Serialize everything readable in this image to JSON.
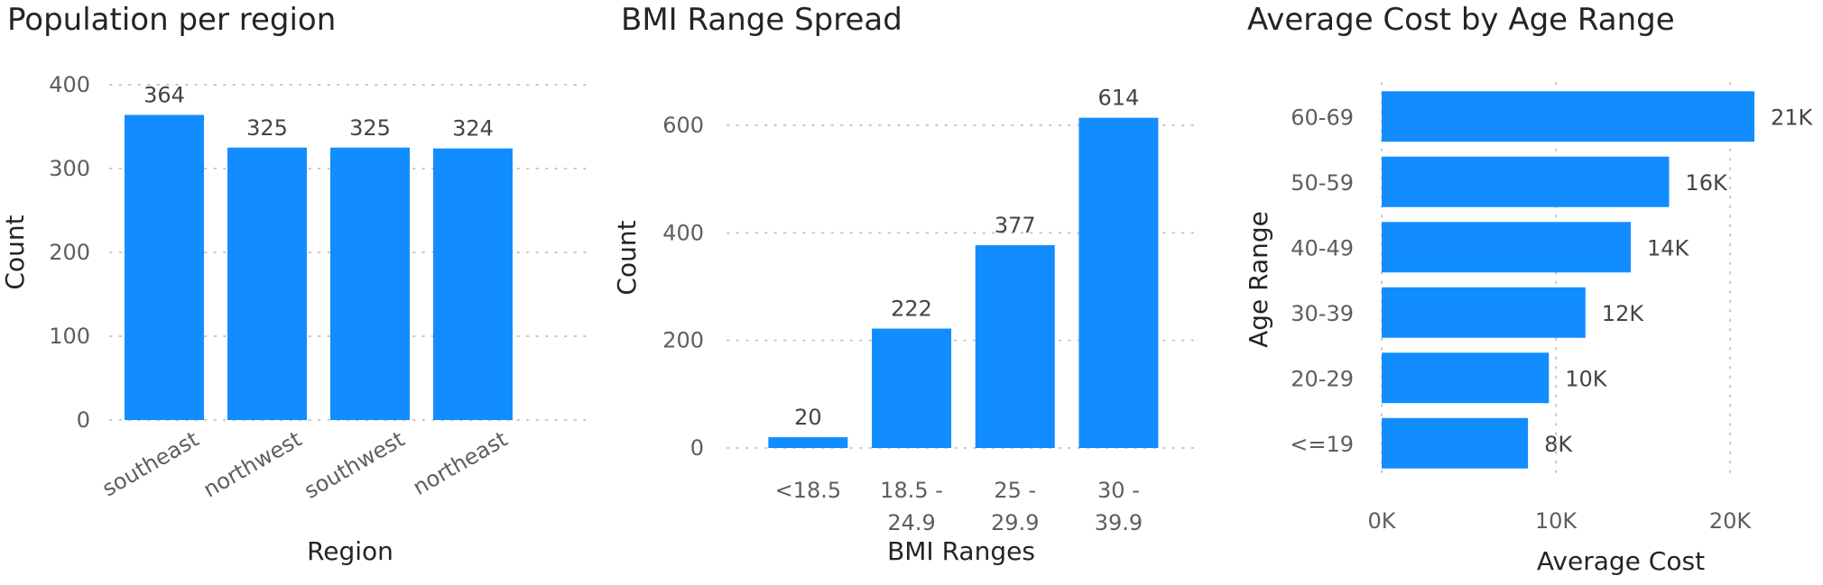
{
  "chart_data": [
    {
      "type": "bar",
      "title": "Population per region",
      "xlabel": "Region",
      "ylabel": "Count",
      "categories": [
        "southeast",
        "northwest",
        "southwest",
        "northeast"
      ],
      "values": [
        364,
        325,
        325,
        324
      ],
      "data_labels": [
        "364",
        "325",
        "325",
        "324"
      ],
      "yticks": [
        0,
        100,
        200,
        300,
        400
      ],
      "ylim": [
        0,
        400
      ],
      "grid": true,
      "color": "#118dff"
    },
    {
      "type": "bar",
      "title": "BMI Range Spread",
      "xlabel": "BMI Ranges",
      "ylabel": "Count",
      "categories": [
        "<18.5",
        "18.5 - 24.9",
        "25 - 29.9",
        "30 - 39.9"
      ],
      "category_lines": [
        [
          "<18.5"
        ],
        [
          "18.5 -",
          "24.9"
        ],
        [
          "25 -",
          "29.9"
        ],
        [
          "30 -",
          "39.9"
        ]
      ],
      "values": [
        20,
        222,
        377,
        614
      ],
      "data_labels": [
        "20",
        "222",
        "377",
        "614"
      ],
      "yticks": [
        0,
        200,
        400,
        600
      ],
      "ylim": [
        0,
        600
      ],
      "grid": true,
      "color": "#118dff"
    },
    {
      "type": "bar",
      "orientation": "horizontal",
      "title": "Average Cost by Age Range",
      "xlabel": "Average Cost",
      "ylabel": "Age Range",
      "categories": [
        "60-69",
        "50-59",
        "40-49",
        "30-39",
        "20-29",
        "<=19"
      ],
      "values": [
        21400,
        16500,
        14300,
        11700,
        9600,
        8400
      ],
      "data_labels": [
        "21K",
        "16K",
        "14K",
        "12K",
        "10K",
        "8K"
      ],
      "xticks": [
        0,
        10000,
        20000
      ],
      "xtick_labels": [
        "0K",
        "10K",
        "20K"
      ],
      "xlim": [
        0,
        21400
      ],
      "grid": true,
      "color": "#118dff"
    }
  ]
}
